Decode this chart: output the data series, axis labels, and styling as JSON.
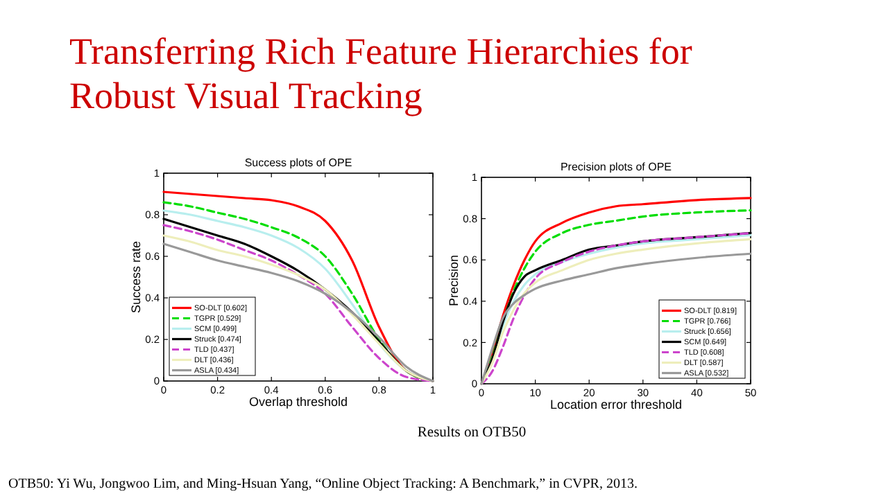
{
  "chart_data": [
    {
      "type": "line",
      "title": "Success plots of OPE",
      "xlabel": "Overlap threshold",
      "ylabel": "Success rate",
      "annotations": [
        "Transferring Rich Feature Hierarchies for Robust Visual Tracking",
        "Results on OTB50",
        "OTB50: Yi Wu, Jongwoo Lim, and Ming-Hsuan Yang, “Online Object Tracking: A Benchmark,” in CVPR, 2013."
      ],
      "x": [
        0,
        0.1,
        0.2,
        0.3,
        0.4,
        0.5,
        0.6,
        0.7,
        0.8,
        0.9,
        1
      ],
      "xlim": [
        0,
        1
      ],
      "xticks": [
        0,
        0.2,
        0.4,
        0.6,
        0.8,
        1
      ],
      "ylim": [
        0,
        1
      ],
      "yticks": [
        0,
        0.2,
        0.4,
        0.6,
        0.8,
        1
      ],
      "grid": false,
      "legend": "bottom left",
      "series": [
        {
          "name": "SO-DLT [0.602]",
          "color": "#ff0000",
          "line_style": "solid",
          "values": [
            0.91,
            0.9,
            0.89,
            0.88,
            0.87,
            0.84,
            0.77,
            0.58,
            0.26,
            0.05,
            0
          ]
        },
        {
          "name": "TGPR [0.529]",
          "color": "#00dd00",
          "line_style": "dashed",
          "values": [
            0.86,
            0.84,
            0.81,
            0.78,
            0.74,
            0.69,
            0.6,
            0.42,
            0.2,
            0.05,
            0
          ]
        },
        {
          "name": "SCM [0.499]",
          "color": "#b8eeee",
          "line_style": "solid",
          "values": [
            0.82,
            0.8,
            0.77,
            0.74,
            0.7,
            0.64,
            0.54,
            0.37,
            0.18,
            0.05,
            0
          ]
        },
        {
          "name": "Struck [0.474]",
          "color": "#000000",
          "line_style": "solid",
          "values": [
            0.78,
            0.74,
            0.7,
            0.66,
            0.6,
            0.53,
            0.44,
            0.33,
            0.19,
            0.05,
            0
          ]
        },
        {
          "name": "TLD [0.437]",
          "color": "#cc44cc",
          "line_style": "dashed",
          "values": [
            0.75,
            0.72,
            0.68,
            0.63,
            0.58,
            0.51,
            0.42,
            0.26,
            0.11,
            0.02,
            0
          ]
        },
        {
          "name": "DLT [0.436]",
          "color": "#eeeebb",
          "line_style": "solid",
          "values": [
            0.7,
            0.67,
            0.63,
            0.6,
            0.56,
            0.51,
            0.44,
            0.32,
            0.18,
            0.05,
            0
          ]
        },
        {
          "name": "ASLA [0.434]",
          "color": "#999999",
          "line_style": "solid",
          "values": [
            0.66,
            0.62,
            0.58,
            0.55,
            0.52,
            0.48,
            0.42,
            0.33,
            0.21,
            0.07,
            0
          ]
        }
      ]
    },
    {
      "type": "line",
      "title": "Precision plots of OPE",
      "xlabel": "Location error threshold",
      "ylabel": "Precision",
      "x": [
        0,
        2,
        4,
        6,
        8,
        10,
        15,
        20,
        25,
        30,
        40,
        50
      ],
      "xlim": [
        0,
        50
      ],
      "xticks": [
        0,
        10,
        20,
        30,
        40,
        50
      ],
      "ylim": [
        0,
        1
      ],
      "yticks": [
        0,
        0.2,
        0.4,
        0.6,
        0.8,
        1
      ],
      "grid": false,
      "legend": "bottom right",
      "series": [
        {
          "name": "SO-DLT [0.819]",
          "color": "#ff0000",
          "line_style": "solid",
          "values": [
            0,
            0.15,
            0.33,
            0.48,
            0.6,
            0.69,
            0.78,
            0.83,
            0.86,
            0.87,
            0.89,
            0.9
          ]
        },
        {
          "name": "TGPR [0.766]",
          "color": "#00dd00",
          "line_style": "dashed",
          "values": [
            0,
            0.13,
            0.3,
            0.45,
            0.56,
            0.64,
            0.73,
            0.77,
            0.79,
            0.81,
            0.83,
            0.84
          ]
        },
        {
          "name": "Struck [0.656]",
          "color": "#b8eeee",
          "line_style": "solid",
          "values": [
            0,
            0.12,
            0.28,
            0.4,
            0.48,
            0.53,
            0.59,
            0.63,
            0.66,
            0.68,
            0.7,
            0.72
          ]
        },
        {
          "name": "SCM [0.649]",
          "color": "#000000",
          "line_style": "solid",
          "values": [
            0,
            0.12,
            0.3,
            0.44,
            0.52,
            0.55,
            0.6,
            0.65,
            0.67,
            0.69,
            0.71,
            0.73
          ]
        },
        {
          "name": "TLD [0.608]",
          "color": "#cc44cc",
          "line_style": "dashed",
          "values": [
            0,
            0.06,
            0.18,
            0.32,
            0.43,
            0.51,
            0.59,
            0.64,
            0.67,
            0.69,
            0.71,
            0.73
          ]
        },
        {
          "name": "DLT [0.587]",
          "color": "#eeeebb",
          "line_style": "solid",
          "values": [
            0,
            0.1,
            0.25,
            0.36,
            0.44,
            0.49,
            0.55,
            0.6,
            0.63,
            0.65,
            0.68,
            0.7
          ]
        },
        {
          "name": "ASLA [0.532]",
          "color": "#999999",
          "line_style": "solid",
          "values": [
            0,
            0.17,
            0.32,
            0.39,
            0.43,
            0.46,
            0.5,
            0.53,
            0.56,
            0.58,
            0.61,
            0.63
          ]
        }
      ]
    }
  ]
}
